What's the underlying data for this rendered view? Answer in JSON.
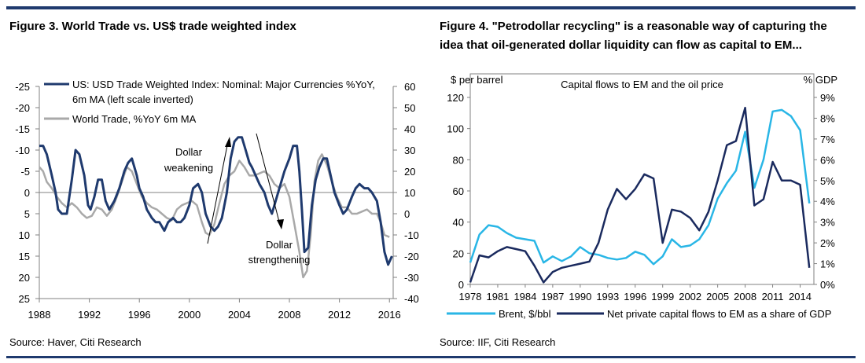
{
  "figures": [
    {
      "title": "Figure 3. World Trade vs. US$ trade weighted index",
      "source": "Source: Haver, Citi Research"
    },
    {
      "title_line1": "Figure 4. \"Petrodollar recycling\" is a reasonable way of capturing the",
      "title_line2": "idea that oil-generated dollar liquidity can flow as capital to EM...",
      "source": "Source: IIF, Citi Research"
    }
  ],
  "chart_data": [
    {
      "type": "line",
      "title": "",
      "legend_position": "top-left",
      "annotations": [
        "Dollar weakening",
        "Dollar strengthening"
      ],
      "x_ticks": [
        "1988",
        "1992",
        "1996",
        "2000",
        "2004",
        "2008",
        "2012",
        "2016"
      ],
      "x_range": [
        1988,
        2016.3
      ],
      "left_axis": {
        "ylim": [
          -25,
          25
        ],
        "inverted": true,
        "ticks": [
          "-25",
          "-20",
          "-15",
          "-10",
          "-5",
          "0",
          "5",
          "10",
          "15",
          "20",
          "25"
        ]
      },
      "right_axis": {
        "ylim": [
          -40,
          60
        ],
        "ticks": [
          "60",
          "50",
          "40",
          "30",
          "20",
          "10",
          "0",
          "-10",
          "-20",
          "-30",
          "-40"
        ]
      },
      "series": [
        {
          "name": "US: USD Trade Weighted Index: Nominal: Major Currencies %YoY, 6m MA (left scale inverted)",
          "axis": "left",
          "color": "#1f3a6e",
          "x": [
            1988.0,
            1988.3,
            1988.6,
            1989.0,
            1989.3,
            1989.5,
            1989.8,
            1990.2,
            1990.6,
            1990.9,
            1991.2,
            1991.6,
            1991.9,
            1992.1,
            1992.4,
            1992.7,
            1993.0,
            1993.3,
            1993.6,
            1994.0,
            1994.4,
            1994.8,
            1995.1,
            1995.4,
            1995.8,
            1996.0,
            1996.3,
            1996.6,
            1997.0,
            1997.3,
            1997.6,
            1998.0,
            1998.3,
            1998.7,
            1999.0,
            1999.3,
            1999.6,
            2000.0,
            2000.3,
            2000.7,
            2001.0,
            2001.3,
            2001.7,
            2002.0,
            2002.3,
            2002.6,
            2003.0,
            2003.3,
            2003.6,
            2003.9,
            2004.2,
            2004.5,
            2004.8,
            2005.0,
            2005.3,
            2005.6,
            2006.0,
            2006.3,
            2006.6,
            2007.0,
            2007.3,
            2007.6,
            2008.0,
            2008.3,
            2008.6,
            2008.8,
            2009.0,
            2009.2,
            2009.5,
            2009.8,
            2010.1,
            2010.4,
            2010.7,
            2011.0,
            2011.3,
            2011.6,
            2012.0,
            2012.3,
            2012.6,
            2013.0,
            2013.3,
            2013.6,
            2014.0,
            2014.3,
            2014.6,
            2015.0,
            2015.3,
            2015.6,
            2015.9,
            2016.2
          ],
          "y": [
            -11,
            -11,
            -9,
            -4,
            0,
            4,
            5,
            5,
            -3,
            -10,
            -9,
            -4,
            3,
            4,
            1,
            -3,
            -3,
            2,
            4,
            2,
            -1,
            -5,
            -7,
            -8,
            -4,
            -1,
            1,
            4,
            6,
            7,
            7,
            9,
            7,
            6,
            7,
            7,
            6,
            3,
            -1,
            -2,
            0,
            5,
            8,
            9,
            8,
            6,
            0,
            -8,
            -12,
            -13,
            -13,
            -10,
            -7,
            -6,
            -4,
            -2,
            0,
            3,
            5,
            1,
            -2,
            -5,
            -8,
            -11,
            -11,
            -5,
            4,
            14,
            13,
            3,
            -3,
            -6,
            -8,
            -8,
            -4,
            0,
            3,
            5,
            4,
            1,
            -1,
            -2,
            -1,
            -1,
            0,
            2,
            7,
            14,
            17,
            15
          ]
        },
        {
          "name": "World Trade, %YoY 6m MA",
          "axis": "right",
          "color": "#a9a9a9",
          "x": [
            1988.0,
            1988.3,
            1988.6,
            1989.0,
            1989.4,
            1989.8,
            1990.2,
            1990.6,
            1991.0,
            1991.4,
            1991.8,
            1992.2,
            1992.6,
            1993.0,
            1993.4,
            1993.8,
            1994.2,
            1994.6,
            1995.0,
            1995.4,
            1995.8,
            1996.2,
            1996.6,
            1997.0,
            1997.4,
            1997.8,
            1998.2,
            1998.6,
            1999.0,
            1999.4,
            1999.8,
            2000.2,
            2000.6,
            2001.0,
            2001.3,
            2001.6,
            2002.0,
            2002.4,
            2002.8,
            2003.2,
            2003.6,
            2004.0,
            2004.4,
            2004.8,
            2005.2,
            2005.6,
            2006.0,
            2006.4,
            2006.8,
            2007.2,
            2007.6,
            2008.0,
            2008.4,
            2008.8,
            2009.1,
            2009.4,
            2009.7,
            2010.0,
            2010.3,
            2010.6,
            2011.0,
            2011.4,
            2011.8,
            2012.2,
            2012.6,
            2013.0,
            2013.4,
            2013.8,
            2014.2,
            2014.6,
            2015.0,
            2015.3,
            2015.6,
            2016.0
          ],
          "y": [
            22,
            20,
            15,
            12,
            8,
            5,
            3,
            5,
            3,
            0,
            -2,
            -1,
            3,
            2,
            -1,
            2,
            8,
            15,
            22,
            20,
            14,
            8,
            5,
            3,
            2,
            0,
            -2,
            -3,
            2,
            4,
            5,
            6,
            4,
            -4,
            -9,
            -10,
            -5,
            5,
            14,
            18,
            20,
            25,
            22,
            18,
            18,
            19,
            20,
            18,
            14,
            12,
            14,
            8,
            -5,
            -18,
            -30,
            -27,
            -10,
            15,
            25,
            28,
            23,
            15,
            8,
            3,
            3,
            0,
            0,
            1,
            2,
            0,
            0,
            -4,
            -10,
            -11
          ]
        }
      ]
    },
    {
      "type": "line",
      "title": "Capital flows to EM and the oil price",
      "ylabel_left": "$ per barrel",
      "ylabel_right": "% GDP",
      "legend_position": "bottom",
      "x_ticks": [
        "1978",
        "1981",
        "1984",
        "1987",
        "1990",
        "1993",
        "1996",
        "1999",
        "2002",
        "2005",
        "2008",
        "2011",
        "2014"
      ],
      "x_range": [
        1978,
        2015.5
      ],
      "left_axis": {
        "ylim": [
          0,
          120
        ],
        "ticks": [
          "0",
          "20",
          "40",
          "60",
          "80",
          "100",
          "120"
        ]
      },
      "right_axis": {
        "ylim": [
          0,
          9
        ],
        "ticks": [
          "0%",
          "1%",
          "2%",
          "3%",
          "4%",
          "5%",
          "6%",
          "7%",
          "8%",
          "9%"
        ]
      },
      "series": [
        {
          "name": "Brent, $/bbl",
          "axis": "left",
          "color": "#29b6e6",
          "x": [
            1978,
            1979,
            1980,
            1981,
            1982,
            1983,
            1984,
            1985,
            1986,
            1987,
            1988,
            1989,
            1990,
            1991,
            1992,
            1993,
            1994,
            1995,
            1996,
            1997,
            1998,
            1999,
            2000,
            2001,
            2002,
            2003,
            2004,
            2005,
            2006,
            2007,
            2008,
            2009,
            2010,
            2011,
            2012,
            2013,
            2014,
            2015
          ],
          "y": [
            14,
            32,
            38,
            37,
            33,
            30,
            29,
            28,
            14,
            18,
            15,
            18,
            24,
            20,
            19,
            17,
            16,
            17,
            21,
            19,
            13,
            18,
            29,
            24,
            25,
            29,
            38,
            55,
            65,
            73,
            98,
            62,
            80,
            111,
            112,
            108,
            99,
            52
          ]
        },
        {
          "name": "Net private capital flows to EM as a share of GDP",
          "axis": "right",
          "color": "#1a2a5e",
          "x": [
            1978,
            1979,
            1980,
            1981,
            1982,
            1983,
            1984,
            1985,
            1986,
            1987,
            1988,
            1989,
            1990,
            1991,
            1992,
            1993,
            1994,
            1995,
            1996,
            1997,
            1998,
            1999,
            2000,
            2001,
            2002,
            2003,
            2004,
            2005,
            2006,
            2007,
            2008,
            2009,
            2010,
            2011,
            2012,
            2013,
            2014,
            2015
          ],
          "y": [
            0.1,
            1.4,
            1.3,
            1.6,
            1.8,
            1.7,
            1.6,
            0.9,
            0.1,
            0.6,
            0.8,
            0.9,
            1.0,
            1.1,
            2.0,
            3.6,
            4.6,
            4.1,
            4.6,
            5.3,
            5.1,
            2.0,
            3.6,
            3.5,
            3.2,
            2.6,
            3.5,
            5.0,
            6.7,
            6.9,
            8.5,
            3.8,
            4.1,
            5.9,
            5.0,
            5.0,
            4.8,
            0.8
          ]
        }
      ]
    }
  ]
}
